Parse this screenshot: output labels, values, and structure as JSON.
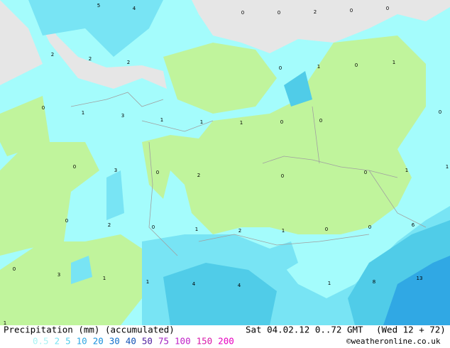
{
  "title": "Precipitation (mm) (accumulated)",
  "valid": "Sat 04.02.12 0..72 GMT",
  "run": "(Wed 12 + 72)",
  "credit": "©weatheronline.co.uk",
  "legend": [
    {
      "label": "0.5",
      "color": "#a8f4f4"
    },
    {
      "label": "2",
      "color": "#78e4f4"
    },
    {
      "label": "5",
      "color": "#50cce8"
    },
    {
      "label": "10",
      "color": "#30a8e4"
    },
    {
      "label": "20",
      "color": "#1890dc"
    },
    {
      "label": "30",
      "color": "#1070cc"
    },
    {
      "label": "40",
      "color": "#1050b4"
    },
    {
      "label": "50",
      "color": "#5020a0"
    },
    {
      "label": "75",
      "color": "#a020c0"
    },
    {
      "label": "100",
      "color": "#c020c8"
    },
    {
      "label": "150",
      "color": "#d818a8"
    },
    {
      "label": "200",
      "color": "#e800c0"
    }
  ],
  "map_labels": [
    "5",
    "4",
    "0",
    "0",
    "2",
    "0",
    "0",
    "2",
    "2",
    "2",
    "0",
    "1",
    "0",
    "1",
    "0",
    "1",
    "3",
    "1",
    "1",
    "1",
    "0",
    "0",
    "0",
    "0",
    "3",
    "0",
    "2",
    "0",
    "0",
    "1",
    "1",
    "0",
    "2",
    "0",
    "1",
    "2",
    "1",
    "0",
    "0",
    "6",
    "0",
    "3",
    "1",
    "1",
    "4",
    "4",
    "1",
    "8",
    "13",
    "1"
  ]
}
